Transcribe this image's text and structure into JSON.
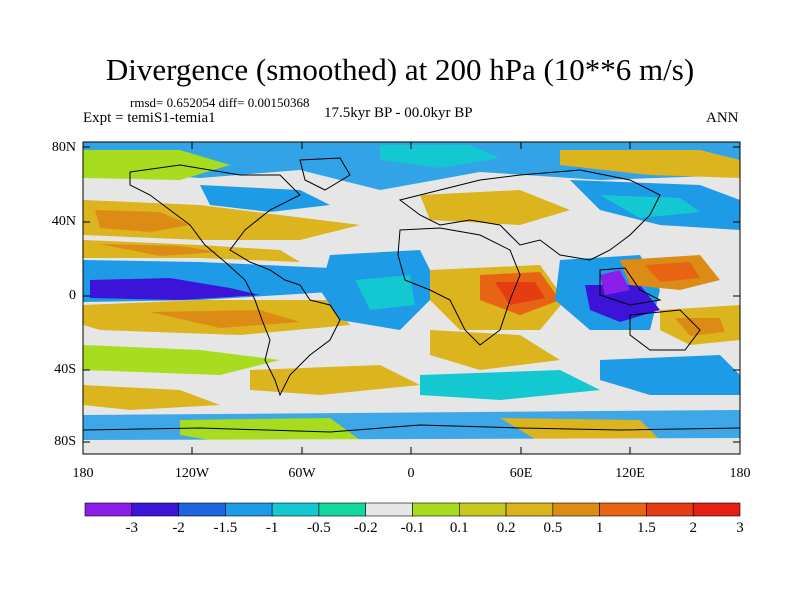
{
  "title": "Divergence (smoothed) at 200 hPa (10**6 m/s)",
  "stats": "rmsd= 0.652054 diff= 0.00150368",
  "experiment": "Expt = temiS1-temia1",
  "period": "17.5kyr BP - 00.0kyr BP",
  "season": "ANN",
  "lat_labels": [
    "80N",
    "40N",
    "0",
    "40S",
    "80S"
  ],
  "lon_labels": [
    "180",
    "120W",
    "60W",
    "0",
    "60E",
    "120E",
    "180"
  ],
  "colorbar": {
    "labels": [
      "-3",
      "-2",
      "-1.5",
      "-1",
      "-0.5",
      "-0.2",
      "-0.1",
      "0.1",
      "0.2",
      "0.5",
      "1",
      "1.5",
      "2",
      "3"
    ],
    "colors": [
      "#8c1eea",
      "#3c14d8",
      "#1e64dc",
      "#1e9be6",
      "#14c8d2",
      "#14d7a0",
      "#e6e6e6",
      "#a8dc1e",
      "#c8c81e",
      "#dcb41e",
      "#dc8c14",
      "#e66414",
      "#e63c14",
      "#e61e14"
    ]
  },
  "field": {
    "description_colors": {
      "strong_neg": "#3c14d8",
      "neg": "#1e9be6",
      "weak_neg": "#14c8d2",
      "neutral": "#e6e6e6",
      "weak_pos": "#a8dc1e",
      "pos": "#dcb41e",
      "strong_pos": "#e66414"
    }
  }
}
